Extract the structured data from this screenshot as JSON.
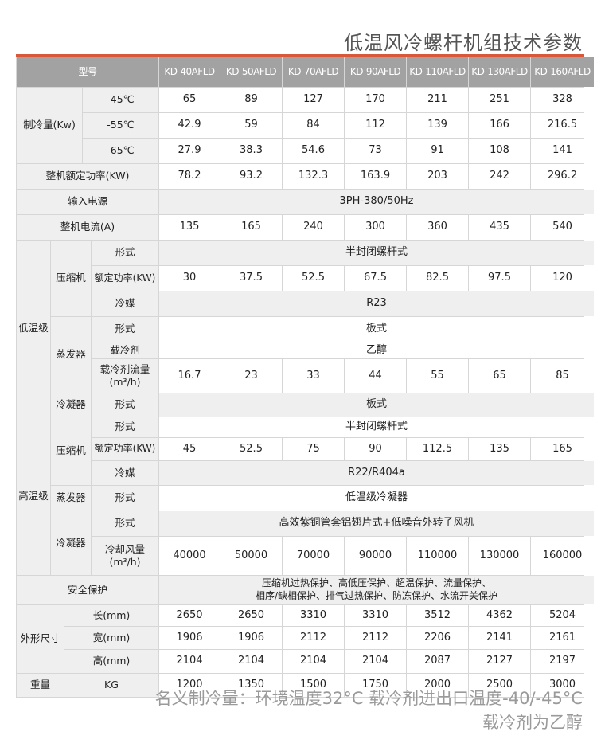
{
  "title": "低温风冷螺杆机组技术参数",
  "header": {
    "label": "型号",
    "models": [
      "KD-40AFLD",
      "KD-50AFLD",
      "KD-70AFLD",
      "KD-90AFLD",
      "KD-110AFLD",
      "KD-130AFLD",
      "KD-160AFLD"
    ]
  },
  "cooling": {
    "label": "制冷量(Kw)",
    "rows": [
      {
        "temp": "-45℃",
        "values": [
          "65",
          "89",
          "127",
          "170",
          "211",
          "251",
          "328"
        ]
      },
      {
        "temp": "-55℃",
        "values": [
          "42.9",
          "59",
          "84",
          "112",
          "139",
          "166",
          "216.5"
        ]
      },
      {
        "temp": "-65℃",
        "values": [
          "27.9",
          "38.3",
          "54.6",
          "73",
          "91",
          "108",
          "141"
        ]
      }
    ]
  },
  "power": {
    "label": "整机额定功率(KW)",
    "values": [
      "78.2",
      "93.2",
      "132.3",
      "163.9",
      "203",
      "242",
      "296.2"
    ]
  },
  "input": {
    "label": "输入电源",
    "value": "3PH-380/50Hz"
  },
  "current": {
    "label": "整机电流(A)",
    "values": [
      "135",
      "165",
      "240",
      "300",
      "360",
      "435",
      "540"
    ]
  },
  "low": {
    "label": "低温级",
    "compressor": {
      "label": "压缩机",
      "form_label": "形式",
      "form": "半封闭螺杆式",
      "rated_label": "额定功率(KW)",
      "rated": [
        "30",
        "37.5",
        "52.5",
        "67.5",
        "82.5",
        "97.5",
        "120"
      ],
      "refrigerant_label": "冷媒",
      "refrigerant": "R23"
    },
    "evaporator": {
      "label": "蒸发器",
      "form_label": "形式",
      "form": "板式",
      "coolant_label": "载冷剂",
      "coolant": "乙醇",
      "flow_label": "载冷剂流量\n(m³/h)",
      "flow": [
        "16.7",
        "23",
        "33",
        "44",
        "55",
        "65",
        "85"
      ]
    },
    "condenser": {
      "label": "冷凝器",
      "form_label": "形式",
      "form": "板式"
    }
  },
  "high": {
    "label": "高温级",
    "compressor": {
      "label": "压缩机",
      "form_label": "形式",
      "form": "半封闭螺杆式",
      "rated_label": "额定功率(KW)",
      "rated": [
        "45",
        "52.5",
        "75",
        "90",
        "112.5",
        "135",
        "165"
      ],
      "refrigerant_label": "冷媒",
      "refrigerant": "R22/R404a"
    },
    "evaporator": {
      "label": "蒸发器",
      "form_label": "形式",
      "form": "低温级冷凝器"
    },
    "condenser": {
      "label": "冷凝器",
      "form_label": "形式",
      "form": "高效紫铜管套铝翅片式+低噪音外转子风机",
      "air_label": "冷却风量\n(m³/h)",
      "air": [
        "40000",
        "50000",
        "70000",
        "90000",
        "110000",
        "130000",
        "160000"
      ]
    }
  },
  "safety": {
    "label": "安全保护",
    "value": "压缩机过热保护、高低压保护、超温保护、流量保护、\n相序/缺相保护、排气过热保护、防冻保护、水流开关保护"
  },
  "dimensions": {
    "label": "外形尺寸",
    "rows": [
      {
        "label": "长(mm)",
        "values": [
          "2650",
          "2650",
          "3310",
          "3310",
          "3512",
          "4362",
          "5204"
        ]
      },
      {
        "label": "宽(mm)",
        "values": [
          "1906",
          "1906",
          "2112",
          "2112",
          "2206",
          "2141",
          "2161"
        ]
      },
      {
        "label": "高(mm)",
        "values": [
          "2104",
          "2104",
          "2104",
          "2104",
          "2087",
          "2127",
          "2197"
        ]
      }
    ]
  },
  "weight": {
    "label": "重量",
    "unit": "KG",
    "values": [
      "1200",
      "1350",
      "1500",
      "1750",
      "2000",
      "2500",
      "3000"
    ]
  },
  "notes": [
    "名义制冷量：环境温度32°C  载冷剂进出口温度-40/-45°C",
    "载冷剂为乙醇"
  ],
  "colors": {
    "accent": "#d9573b",
    "header_bg": "#a2a2a2",
    "label_bg": "#efefef"
  }
}
